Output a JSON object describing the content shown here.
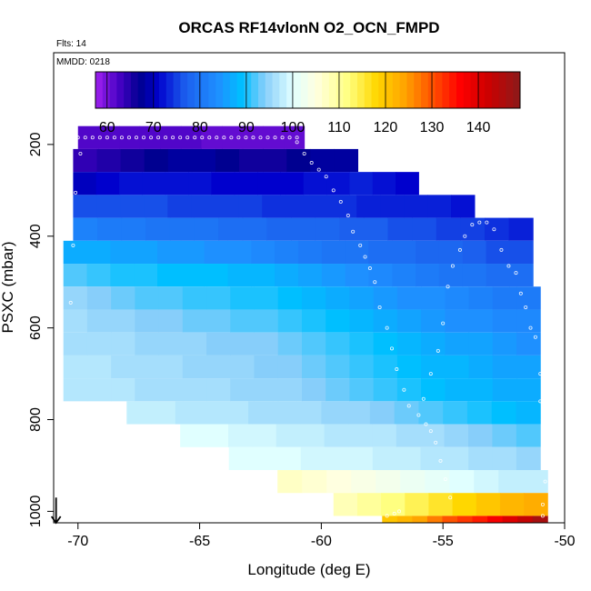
{
  "chart_data": {
    "type": "heatmap",
    "title": "ORCAS RF14vlonN O2_OCN_FMPD",
    "flts_note": "Flts: 14",
    "date_note": "MMDD: 0218",
    "xlabel": "Longitude (deg E)",
    "ylabel": "PSXC (mbar)",
    "xlim": [
      -71,
      -50
    ],
    "ylim": [
      1025,
      0
    ],
    "xticks": [
      -70,
      -65,
      -60,
      -55,
      -50
    ],
    "yticks": [
      200,
      400,
      600,
      800,
      1000
    ],
    "colorbar": {
      "range": [
        57.5,
        149
      ],
      "ticks": [
        60,
        70,
        80,
        90,
        100,
        110,
        120,
        130,
        140
      ],
      "stops": [
        {
          "v": 57.5,
          "c": "#a020f0"
        },
        {
          "v": 63,
          "c": "#4000c0"
        },
        {
          "v": 67,
          "c": "#000090"
        },
        {
          "v": 71,
          "c": "#0000cd"
        },
        {
          "v": 77,
          "c": "#1c60ee"
        },
        {
          "v": 84,
          "c": "#1e90ff"
        },
        {
          "v": 89,
          "c": "#00bfff"
        },
        {
          "v": 94,
          "c": "#87cefa"
        },
        {
          "v": 100,
          "c": "#e0ffff"
        },
        {
          "v": 105,
          "c": "#ffffe0"
        },
        {
          "v": 112,
          "c": "#ffff80"
        },
        {
          "v": 118,
          "c": "#ffd700"
        },
        {
          "v": 124,
          "c": "#ffa500"
        },
        {
          "v": 131,
          "c": "#ff4500"
        },
        {
          "v": 136,
          "c": "#ff0000"
        },
        {
          "v": 142,
          "c": "#cd0000"
        },
        {
          "v": 149,
          "c": "#8b1a1a"
        }
      ]
    },
    "rows": [
      {
        "p": 185,
        "lon": [
          -70.0,
          -60.7
        ],
        "v": [
          62,
          62,
          62,
          62,
          62,
          62,
          61,
          61,
          61,
          61,
          61
        ]
      },
      {
        "p": 235,
        "lon": [
          -70.2,
          -58.5
        ],
        "v": [
          64,
          65,
          66,
          67,
          68,
          68,
          67,
          66,
          66,
          67,
          68,
          68
        ]
      },
      {
        "p": 285,
        "lon": [
          -70.2,
          -56.0
        ],
        "v": [
          70,
          71,
          72,
          72,
          72,
          72,
          71,
          71,
          71,
          71,
          72,
          72,
          73,
          72,
          71
        ]
      },
      {
        "p": 335,
        "lon": [
          -70.2,
          -53.7
        ],
        "v": [
          76,
          76,
          76,
          76,
          75,
          75,
          75,
          75,
          74,
          74,
          74,
          74,
          73,
          73,
          73,
          73,
          72
        ]
      },
      {
        "p": 385,
        "lon": [
          -70.2,
          -51.3
        ],
        "v": [
          82,
          81,
          81,
          80,
          80,
          80,
          79,
          79,
          78,
          78,
          78,
          77,
          77,
          76,
          76,
          75,
          75,
          74,
          73
        ]
      },
      {
        "p": 435,
        "lon": [
          -70.6,
          -51.3
        ],
        "v": [
          87,
          87,
          86,
          86,
          85,
          85,
          84,
          84,
          83,
          82,
          81,
          80,
          80,
          79,
          79,
          78,
          78,
          77,
          76,
          76
        ]
      },
      {
        "p": 485,
        "lon": [
          -70.6,
          -51.3
        ],
        "v": [
          92,
          91,
          90,
          90,
          89,
          89,
          89,
          88,
          88,
          87,
          86,
          85,
          84,
          83,
          82,
          81,
          80,
          80,
          79,
          79
        ]
      },
      {
        "p": 535,
        "lon": [
          -70.6,
          -51.0
        ],
        "v": [
          95,
          94,
          93,
          92,
          92,
          91,
          91,
          90,
          90,
          89,
          88,
          87,
          86,
          85,
          84,
          84,
          83,
          82,
          81,
          81
        ]
      },
      {
        "p": 585,
        "lon": [
          -70.6,
          -51.0
        ],
        "v": [
          96,
          95,
          95,
          94,
          94,
          93,
          93,
          92,
          92,
          91,
          90,
          89,
          88,
          87,
          86,
          85,
          84,
          84,
          83,
          83
        ]
      },
      {
        "p": 635,
        "lon": [
          -70.6,
          -51.0
        ],
        "v": [
          96,
          96,
          96,
          95,
          95,
          95,
          94,
          94,
          94,
          93,
          92,
          91,
          90,
          89,
          88,
          87,
          86,
          86,
          85,
          84
        ]
      },
      {
        "p": 685,
        "lon": [
          -70.6,
          -51.0
        ],
        "v": [
          97,
          97,
          96,
          96,
          96,
          95,
          95,
          95,
          94,
          94,
          93,
          92,
          91,
          90,
          89,
          88,
          88,
          87,
          86,
          86
        ]
      },
      {
        "p": 735,
        "lon": [
          -70.6,
          -51.0
        ],
        "v": [
          97,
          97,
          97,
          96,
          96,
          96,
          96,
          95,
          95,
          95,
          94,
          93,
          92,
          91,
          90,
          89,
          88,
          88,
          87,
          87
        ]
      },
      {
        "p": 785,
        "lon": [
          -68.0,
          -51.0
        ],
        "v": [
          98,
          98,
          97,
          97,
          97,
          96,
          96,
          96,
          95,
          95,
          94,
          93,
          92,
          91,
          90,
          89,
          88
        ]
      },
      {
        "p": 835,
        "lon": [
          -65.8,
          -51.0
        ],
        "v": [
          100,
          100,
          99,
          99,
          98,
          98,
          97,
          97,
          97,
          96,
          96,
          95,
          94,
          93,
          92
        ]
      },
      {
        "p": 885,
        "lon": [
          -63.8,
          -51.0
        ],
        "v": [
          100,
          100,
          100,
          99,
          99,
          99,
          98,
          98,
          97,
          97,
          96,
          96,
          95
        ]
      },
      {
        "p": 935,
        "lon": [
          -61.8,
          -50.7
        ],
        "v": [
          107,
          106,
          105,
          104,
          103,
          102,
          101,
          100,
          99,
          98,
          98
        ]
      },
      {
        "p": 985,
        "lon": [
          -59.5,
          -50.7
        ],
        "v": [
          108,
          110,
          112,
          114,
          116,
          118,
          120,
          122,
          123
        ]
      },
      {
        "p": 1035,
        "lon": [
          -57.5,
          -50.7
        ],
        "v": [
          120,
          122,
          124,
          127,
          130,
          132,
          134,
          137,
          140,
          143,
          146
        ]
      }
    ],
    "track_points": [
      [
        -70.0,
        185
      ],
      [
        -69.7,
        185
      ],
      [
        -69.4,
        185
      ],
      [
        -69.1,
        185
      ],
      [
        -68.8,
        185
      ],
      [
        -68.5,
        185
      ],
      [
        -68.2,
        185
      ],
      [
        -67.9,
        185
      ],
      [
        -67.6,
        185
      ],
      [
        -67.3,
        185
      ],
      [
        -67.0,
        185
      ],
      [
        -66.7,
        185
      ],
      [
        -66.4,
        185
      ],
      [
        -66.1,
        185
      ],
      [
        -65.8,
        185
      ],
      [
        -65.5,
        185
      ],
      [
        -65.2,
        185
      ],
      [
        -64.9,
        185
      ],
      [
        -64.6,
        185
      ],
      [
        -64.3,
        185
      ],
      [
        -64.0,
        185
      ],
      [
        -63.7,
        185
      ],
      [
        -63.4,
        185
      ],
      [
        -63.1,
        185
      ],
      [
        -62.8,
        185
      ],
      [
        -62.5,
        185
      ],
      [
        -62.2,
        185
      ],
      [
        -61.9,
        185
      ],
      [
        -61.6,
        185
      ],
      [
        -61.3,
        185
      ],
      [
        -61.0,
        185
      ],
      [
        -69.9,
        220
      ],
      [
        -70.1,
        305
      ],
      [
        -70.2,
        420
      ],
      [
        -70.3,
        545
      ],
      [
        -61.0,
        195
      ],
      [
        -60.7,
        220
      ],
      [
        -60.4,
        240
      ],
      [
        -60.1,
        255
      ],
      [
        -59.8,
        270
      ],
      [
        -59.5,
        300
      ],
      [
        -59.2,
        325
      ],
      [
        -58.9,
        355
      ],
      [
        -58.7,
        390
      ],
      [
        -58.4,
        420
      ],
      [
        -58.2,
        445
      ],
      [
        -58.0,
        470
      ],
      [
        -57.8,
        500
      ],
      [
        -57.6,
        555
      ],
      [
        -57.3,
        600
      ],
      [
        -57.1,
        645
      ],
      [
        -56.9,
        690
      ],
      [
        -56.6,
        735
      ],
      [
        -56.4,
        770
      ],
      [
        -56.0,
        790
      ],
      [
        -55.7,
        810
      ],
      [
        -55.5,
        825
      ],
      [
        -55.3,
        850
      ],
      [
        -55.1,
        890
      ],
      [
        -54.9,
        930
      ],
      [
        -54.7,
        970
      ],
      [
        -55.8,
        755
      ],
      [
        -55.5,
        700
      ],
      [
        -55.2,
        650
      ],
      [
        -55.0,
        590
      ],
      [
        -54.8,
        510
      ],
      [
        -54.6,
        465
      ],
      [
        -54.3,
        430
      ],
      [
        -54.1,
        400
      ],
      [
        -53.8,
        375
      ],
      [
        -53.5,
        370
      ],
      [
        -53.2,
        370
      ],
      [
        -52.9,
        385
      ],
      [
        -52.6,
        430
      ],
      [
        -52.3,
        465
      ],
      [
        -52.0,
        480
      ],
      [
        -51.8,
        525
      ],
      [
        -51.6,
        555
      ],
      [
        -51.4,
        600
      ],
      [
        -51.2,
        620
      ],
      [
        -51.0,
        700
      ],
      [
        -51.0,
        760
      ],
      [
        -50.9,
        800
      ],
      [
        -50.9,
        860
      ],
      [
        -50.8,
        935
      ],
      [
        -50.9,
        985
      ],
      [
        -50.9,
        1010
      ],
      [
        -57.3,
        1010
      ],
      [
        -57.0,
        1005
      ],
      [
        -56.8,
        1000
      ]
    ],
    "arrow": {
      "lon": -70.9,
      "from_p": 970,
      "to_p": 1025
    }
  }
}
